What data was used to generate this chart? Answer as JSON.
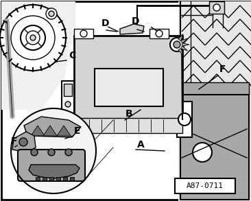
{
  "bg_color": "#ffffff",
  "light_gray": "#d4d4d4",
  "mid_gray": "#a8a8a8",
  "dark_gray": "#707070",
  "very_dark_gray": "#404040",
  "line_color": "#000000",
  "label_A": "A",
  "label_B": "B",
  "label_C": "C",
  "label_D": "D",
  "label_E": "E",
  "label_F": "F",
  "ref_label": "A87-0711",
  "fig_width": 3.66,
  "fig_height": 2.93,
  "dpi": 100
}
